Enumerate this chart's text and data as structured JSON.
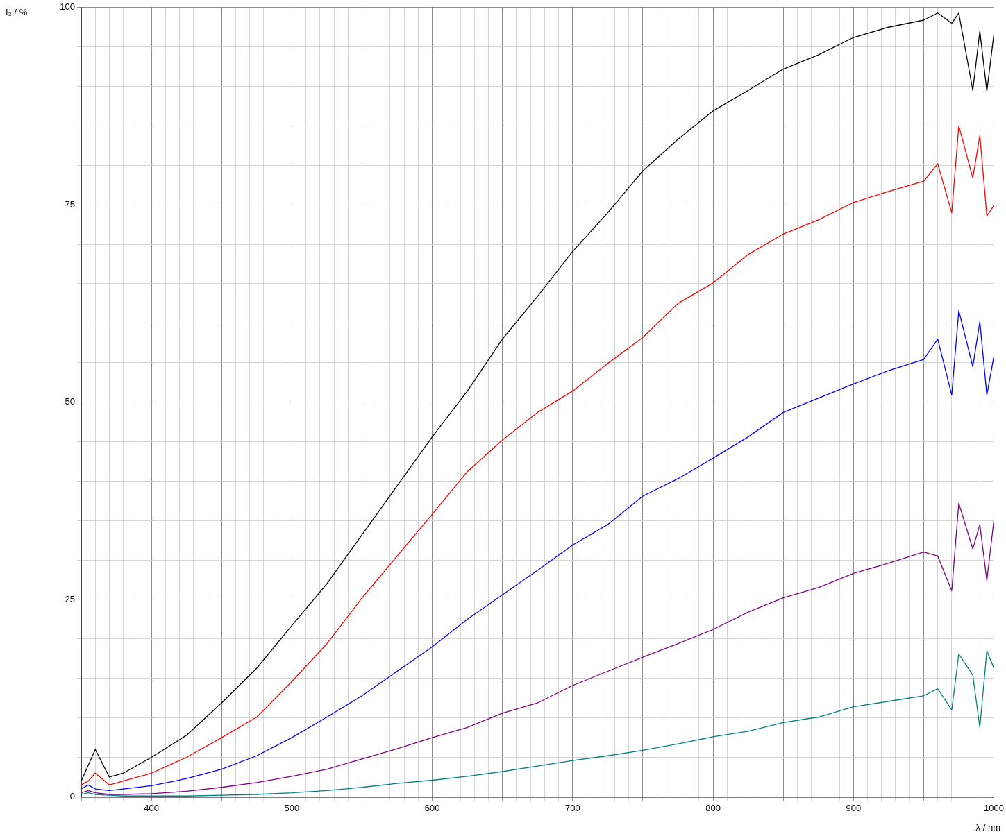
{
  "chart_data": {
    "type": "line",
    "xlabel": "λ / nm",
    "ylabel": "I₃ / %",
    "x": [
      350,
      355,
      360,
      370,
      380,
      400,
      425,
      450,
      475,
      500,
      525,
      550,
      575,
      600,
      625,
      650,
      675,
      700,
      725,
      750,
      775,
      800,
      825,
      850,
      875,
      900,
      925,
      950,
      960,
      970,
      975,
      985,
      990,
      995,
      1000
    ],
    "series": [
      {
        "color": "#000000",
        "values": [
          2,
          4,
          6,
          2.5,
          3,
          5,
          7.8,
          11.9,
          16.3,
          21.7,
          27,
          33.2,
          39.4,
          45.6,
          51.4,
          58,
          63.4,
          69.1,
          74,
          79.3,
          83.3,
          86.9,
          89.5,
          92.2,
          94,
          96.2,
          97.5,
          98.4,
          99.3,
          98,
          99.3,
          89.5,
          97,
          89.4,
          96.6
        ]
      },
      {
        "color": "#ff0000",
        "values": [
          1.5,
          2,
          3,
          1.5,
          2,
          3,
          5,
          7.5,
          10.1,
          14.6,
          19.4,
          25.2,
          30.5,
          35.8,
          41.2,
          45.2,
          48.7,
          51.4,
          54.9,
          58.2,
          62.5,
          65.1,
          68.7,
          71.3,
          73.1,
          75.3,
          76.7,
          78,
          80.2,
          74,
          85,
          78.4,
          83.8,
          73.6,
          74.9
        ]
      },
      {
        "color": "#0000ff",
        "values": [
          1,
          1.5,
          1,
          0.8,
          1,
          1.4,
          2.3,
          3.5,
          5.2,
          7.5,
          10.1,
          12.8,
          15.9,
          19,
          22.5,
          25.6,
          28.7,
          31.9,
          34.5,
          38.1,
          40.3,
          42.9,
          45.6,
          48.7,
          50.5,
          52.3,
          54,
          55.4,
          58,
          50.9,
          61.6,
          54.5,
          60.2,
          50.9,
          55.8
        ]
      },
      {
        "color": "#800080",
        "values": [
          0.5,
          0.8,
          0.5,
          0.3,
          0.3,
          0.4,
          0.7,
          1.2,
          1.8,
          2.6,
          3.5,
          4.8,
          6.1,
          7.5,
          8.8,
          10.6,
          11.9,
          14.1,
          15.9,
          17.7,
          19.4,
          21.2,
          23.4,
          25.2,
          26.5,
          28.3,
          29.6,
          31,
          30.5,
          26.1,
          37.2,
          31.4,
          34.5,
          27.4,
          35
        ]
      },
      {
        "color": "#008080",
        "values": [
          0.3,
          0.5,
          0.3,
          0.2,
          0.1,
          0.1,
          0.1,
          0.2,
          0.3,
          0.5,
          0.8,
          1.2,
          1.7,
          2.1,
          2.6,
          3.2,
          3.9,
          4.6,
          5.2,
          5.9,
          6.7,
          7.6,
          8.3,
          9.4,
          10.1,
          11.4,
          12.1,
          12.8,
          13.7,
          11,
          18.1,
          15.4,
          8.8,
          18.5,
          16.3
        ]
      }
    ],
    "xlim": [
      350,
      1000
    ],
    "xticks": [
      {
        "value": 350,
        "label": null
      },
      {
        "value": 360,
        "label": null
      },
      {
        "value": 370,
        "label": null
      },
      {
        "value": 380,
        "label": null
      },
      {
        "value": 390,
        "label": null
      },
      400,
      {
        "value": 410,
        "label": null
      },
      {
        "value": 420,
        "label": null
      },
      {
        "value": 430,
        "label": null
      },
      {
        "value": 440,
        "label": null
      },
      {
        "value": 450,
        "label": null
      },
      {
        "value": 460,
        "label": null
      },
      {
        "value": 470,
        "label": null
      },
      {
        "value": 480,
        "label": null
      },
      {
        "value": 490,
        "label": null
      },
      500,
      {
        "value": 510,
        "label": null
      },
      {
        "value": 520,
        "label": null
      },
      {
        "value": 530,
        "label": null
      },
      {
        "value": 540,
        "label": null
      },
      {
        "value": 550,
        "label": null
      },
      {
        "value": 560,
        "label": null
      },
      {
        "value": 570,
        "label": null
      },
      {
        "value": 580,
        "label": null
      },
      {
        "value": 590,
        "label": null
      },
      600,
      {
        "value": 610,
        "label": null
      },
      {
        "value": 620,
        "label": null
      },
      {
        "value": 630,
        "label": null
      },
      {
        "value": 640,
        "label": null
      },
      {
        "value": 650,
        "label": null
      },
      {
        "value": 660,
        "label": null
      },
      {
        "value": 670,
        "label": null
      },
      {
        "value": 680,
        "label": null
      },
      {
        "value": 690,
        "label": null
      },
      700,
      {
        "value": 710,
        "label": null
      },
      {
        "value": 720,
        "label": null
      },
      {
        "value": 730,
        "label": null
      },
      {
        "value": 740,
        "label": null
      },
      {
        "value": 750,
        "label": null
      },
      {
        "value": 760,
        "label": null
      },
      {
        "value": 770,
        "label": null
      },
      {
        "value": 780,
        "label": null
      },
      {
        "value": 790,
        "label": null
      },
      800,
      {
        "value": 810,
        "label": null
      },
      {
        "value": 820,
        "label": null
      },
      {
        "value": 830,
        "label": null
      },
      {
        "value": 840,
        "label": null
      },
      {
        "value": 850,
        "label": null
      },
      {
        "value": 860,
        "label": null
      },
      {
        "value": 870,
        "label": null
      },
      {
        "value": 880,
        "label": null
      },
      {
        "value": 890,
        "label": null
      },
      900,
      {
        "value": 910,
        "label": null
      },
      {
        "value": 920,
        "label": null
      },
      {
        "value": 930,
        "label": null
      },
      {
        "value": 940,
        "label": null
      },
      {
        "value": 950,
        "label": null
      },
      {
        "value": 960,
        "label": null
      },
      {
        "value": 970,
        "label": null
      },
      {
        "value": 980,
        "label": null
      },
      {
        "value": 990,
        "label": null
      },
      1000
    ],
    "ylim": [
      0,
      100
    ],
    "yticks": [
      0,
      {
        "value": 5,
        "label": null
      },
      {
        "value": 10,
        "label": null
      },
      {
        "value": 15,
        "label": null
      },
      {
        "value": 20,
        "label": null
      },
      25,
      {
        "value": 30,
        "label": null
      },
      {
        "value": 35,
        "label": null
      },
      {
        "value": 40,
        "label": null
      },
      {
        "value": 45,
        "label": null
      },
      50,
      {
        "value": 55,
        "label": null
      },
      {
        "value": 60,
        "label": null
      },
      {
        "value": 65,
        "label": null
      },
      {
        "value": 70,
        "label": null
      },
      75,
      {
        "value": 80,
        "label": null
      },
      {
        "value": 85,
        "label": null
      },
      {
        "value": 90,
        "label": null
      },
      {
        "value": 95,
        "label": null
      },
      100
    ],
    "grid": true,
    "legend": false,
    "marker": "none",
    "line_style": "solid"
  }
}
